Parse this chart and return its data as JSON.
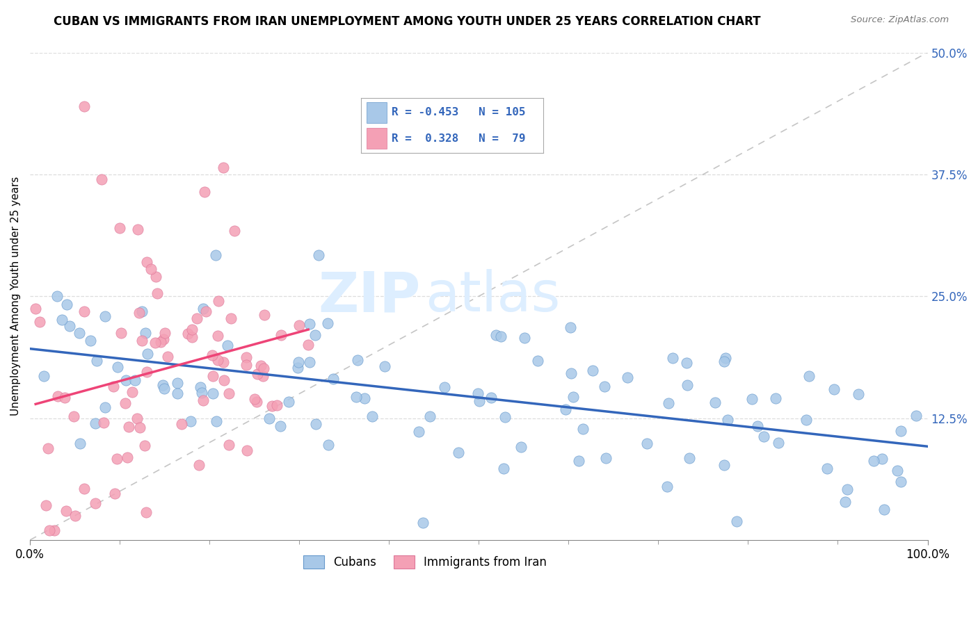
{
  "title": "CUBAN VS IMMIGRANTS FROM IRAN UNEMPLOYMENT AMONG YOUTH UNDER 25 YEARS CORRELATION CHART",
  "source": "Source: ZipAtlas.com",
  "ylabel": "Unemployment Among Youth under 25 years",
  "xlim": [
    0,
    1.0
  ],
  "ylim": [
    0,
    0.5
  ],
  "xtick_labels": [
    "0.0%",
    "100.0%"
  ],
  "xtick_pos": [
    0.0,
    1.0
  ],
  "yticks": [
    0.0,
    0.125,
    0.25,
    0.375,
    0.5
  ],
  "ytick_labels": [
    "",
    "12.5%",
    "25.0%",
    "37.5%",
    "50.0%"
  ],
  "blue_color": "#a8c8e8",
  "pink_color": "#f4a0b5",
  "blue_edge_color": "#6699cc",
  "pink_edge_color": "#dd7799",
  "blue_line_color": "#3366bb",
  "pink_line_color": "#ee4477",
  "watermark_zip": "ZIP",
  "watermark_atlas": "atlas",
  "watermark_color": "#ddeeff",
  "blue_R": -0.453,
  "blue_N": 105,
  "pink_R": 0.328,
  "pink_N": 79,
  "title_fontsize": 12,
  "axis_fontsize": 11,
  "tick_fontsize": 12,
  "background_color": "#ffffff",
  "grid_color": "#dddddd",
  "legend_color": "#3366bb"
}
